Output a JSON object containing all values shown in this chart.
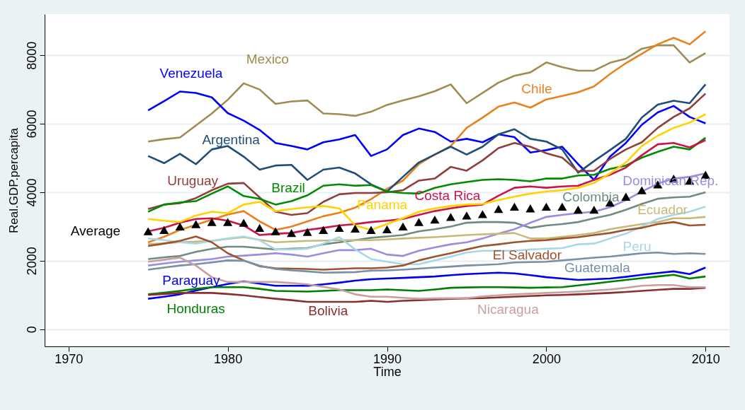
{
  "chart_data": {
    "type": "line",
    "xlabel": "Time",
    "ylabel": "Real.GDP.percapita",
    "x": [
      1975,
      1976,
      1977,
      1978,
      1979,
      1980,
      1981,
      1982,
      1983,
      1984,
      1985,
      1986,
      1987,
      1988,
      1989,
      1990,
      1991,
      1992,
      1993,
      1994,
      1995,
      1996,
      1997,
      1998,
      1999,
      2000,
      2001,
      2002,
      2003,
      2004,
      2005,
      2006,
      2007,
      2008,
      2009,
      2010
    ],
    "xlim": [
      1968.5,
      2011.5
    ],
    "xticks": [
      1970,
      1980,
      1990,
      2000,
      2010
    ],
    "ylim": [
      -500,
      9200
    ],
    "yticks": [
      0,
      2000,
      4000,
      6000,
      8000
    ],
    "grid": "y",
    "legend": false,
    "line_style": "solid",
    "marker": "none",
    "series": [
      {
        "name": "Mexico",
        "color": "#a08c50",
        "values": [
          5480,
          5550,
          5600,
          5950,
          6300,
          6700,
          7180,
          7000,
          6580,
          6650,
          6680,
          6300,
          6280,
          6230,
          6350,
          6550,
          6680,
          6800,
          6950,
          7150,
          6600,
          6900,
          7200,
          7400,
          7500,
          7790,
          7650,
          7550,
          7550,
          7780,
          7900,
          8190,
          8290,
          8290,
          7790,
          8060
        ]
      },
      {
        "name": "Venezuela",
        "color": "#0000ff",
        "values": [
          6390,
          6660,
          6940,
          6900,
          6770,
          6310,
          6090,
          5820,
          5440,
          5350,
          5250,
          5460,
          5540,
          5670,
          5060,
          5250,
          5670,
          5860,
          5760,
          5480,
          5560,
          5460,
          5690,
          5610,
          5160,
          5230,
          5330,
          4820,
          4360,
          5040,
          5440,
          5970,
          6330,
          6520,
          6200,
          6010
        ]
      },
      {
        "name": "Chile",
        "color": "#e8821e",
        "values": [
          2540,
          2700,
          2900,
          3050,
          3200,
          3350,
          3450,
          3150,
          2900,
          3000,
          3150,
          3300,
          3400,
          3550,
          3800,
          4100,
          4340,
          4820,
          5100,
          5350,
          5880,
          6180,
          6500,
          6620,
          6470,
          6710,
          6810,
          6920,
          7090,
          7450,
          7770,
          8040,
          8320,
          8510,
          8320,
          8700
        ]
      },
      {
        "name": "Argentina",
        "color": "#1f4e79",
        "values": [
          5060,
          4850,
          5120,
          4820,
          5250,
          5350,
          5040,
          4660,
          4780,
          4800,
          4360,
          4660,
          4720,
          4550,
          4230,
          4020,
          4450,
          4870,
          5100,
          5330,
          5100,
          5330,
          5690,
          5840,
          5560,
          5480,
          5250,
          4570,
          4910,
          5230,
          5560,
          6180,
          6560,
          6670,
          6600,
          7150
        ]
      },
      {
        "name": "Uruguay",
        "color": "#90403c",
        "values": [
          3510,
          3640,
          3680,
          3830,
          4060,
          4250,
          4270,
          3850,
          3430,
          3340,
          3390,
          3720,
          3940,
          3980,
          3980,
          4000,
          4060,
          4340,
          4400,
          4740,
          4630,
          4930,
          5290,
          5440,
          5330,
          5140,
          5010,
          4610,
          4630,
          4970,
          5250,
          5460,
          5880,
          6200,
          6450,
          6880
        ]
      },
      {
        "name": "Brazil",
        "color": "#008c00",
        "values": [
          3430,
          3640,
          3700,
          3740,
          3960,
          4170,
          3890,
          3810,
          3640,
          3740,
          3910,
          4190,
          4230,
          4190,
          4210,
          4020,
          3980,
          3960,
          4130,
          4230,
          4300,
          4360,
          4380,
          4360,
          4320,
          4400,
          4400,
          4490,
          4510,
          4680,
          4780,
          5010,
          5180,
          5330,
          5250,
          5590
        ]
      },
      {
        "name": "Costa Rica",
        "color": "#cc1448",
        "values": [
          2860,
          2960,
          3110,
          3220,
          3240,
          3170,
          3030,
          2750,
          2790,
          2810,
          2900,
          2960,
          3030,
          3070,
          3130,
          3170,
          3220,
          3340,
          3450,
          3530,
          3600,
          3640,
          3900,
          4130,
          4170,
          4130,
          4170,
          4190,
          4360,
          4510,
          4720,
          5080,
          5400,
          5440,
          5310,
          5520
        ]
      },
      {
        "name": "Panama",
        "color": "#ffd200",
        "values": [
          3220,
          3170,
          3130,
          3320,
          3430,
          3390,
          3640,
          3720,
          3450,
          3510,
          3560,
          3600,
          3530,
          3030,
          2900,
          3070,
          3240,
          3430,
          3530,
          3600,
          3640,
          3660,
          3770,
          3870,
          3960,
          4020,
          4060,
          4130,
          4270,
          4550,
          4870,
          5350,
          5650,
          5880,
          6030,
          6280
        ]
      },
      {
        "name": "Colombia",
        "color": "#6e8c80",
        "values": [
          2050,
          2100,
          2140,
          2260,
          2350,
          2410,
          2410,
          2370,
          2330,
          2350,
          2370,
          2480,
          2540,
          2600,
          2670,
          2710,
          2750,
          2860,
          2920,
          3000,
          3110,
          3130,
          3130,
          3110,
          2960,
          3030,
          3070,
          3130,
          3240,
          3340,
          3490,
          3660,
          3810,
          3850,
          3870,
          4000
        ]
      },
      {
        "name": "Dominican Rep.",
        "color": "#9b8ce0",
        "values": [
          1860,
          1920,
          1970,
          2010,
          2050,
          2120,
          2150,
          2180,
          2220,
          2180,
          2120,
          2220,
          2310,
          2310,
          2350,
          2180,
          2140,
          2290,
          2390,
          2480,
          2540,
          2650,
          2790,
          2920,
          3110,
          3280,
          3340,
          3390,
          3430,
          3560,
          3770,
          4020,
          4250,
          4400,
          4450,
          4550
        ]
      },
      {
        "name": "Ecuador",
        "color": "#c8b878",
        "values": [
          2480,
          2510,
          2540,
          2560,
          2580,
          2640,
          2690,
          2610,
          2540,
          2560,
          2580,
          2590,
          2600,
          2600,
          2600,
          2620,
          2650,
          2670,
          2690,
          2720,
          2750,
          2770,
          2790,
          2810,
          2650,
          2650,
          2700,
          2750,
          2810,
          2920,
          3000,
          3070,
          3130,
          3240,
          3240,
          3280
        ]
      },
      {
        "name": "Peru",
        "color": "#a8d8e8",
        "values": [
          2650,
          2600,
          2540,
          2500,
          2580,
          2650,
          2710,
          2600,
          2330,
          2330,
          2350,
          2500,
          2690,
          2330,
          2050,
          1970,
          1900,
          1900,
          2010,
          2120,
          2240,
          2290,
          2290,
          2290,
          2330,
          2350,
          2370,
          2480,
          2500,
          2650,
          2790,
          3000,
          3220,
          3340,
          3430,
          3580
        ]
      },
      {
        "name": "El Salvador",
        "color": "#a0522d",
        "values": [
          2430,
          2500,
          2580,
          2710,
          2540,
          2220,
          2010,
          1840,
          1780,
          1770,
          1760,
          1740,
          1760,
          1780,
          1780,
          1800,
          1860,
          2010,
          2120,
          2220,
          2330,
          2430,
          2480,
          2540,
          2580,
          2600,
          2650,
          2690,
          2750,
          2810,
          2900,
          2960,
          3070,
          3130,
          3030,
          3050
        ]
      },
      {
        "name": "Guatemala",
        "color": "#7890a8",
        "values": [
          1740,
          1800,
          1860,
          1900,
          1950,
          2010,
          2000,
          1860,
          1760,
          1720,
          1690,
          1650,
          1660,
          1670,
          1710,
          1720,
          1740,
          1770,
          1800,
          1830,
          1860,
          1880,
          1900,
          1950,
          1960,
          1970,
          2010,
          2050,
          2090,
          2120,
          2170,
          2220,
          2240,
          2200,
          2220,
          2200
        ]
      },
      {
        "name": "Paraguay",
        "color": "#0000f0",
        "values": [
          890,
          950,
          1020,
          1130,
          1230,
          1320,
          1400,
          1330,
          1270,
          1270,
          1270,
          1310,
          1360,
          1420,
          1460,
          1480,
          1500,
          1520,
          1540,
          1580,
          1610,
          1630,
          1650,
          1630,
          1580,
          1520,
          1480,
          1440,
          1460,
          1480,
          1530,
          1590,
          1640,
          1690,
          1610,
          1800
        ]
      },
      {
        "name": "Honduras",
        "color": "#008000",
        "values": [
          1020,
          1070,
          1120,
          1180,
          1230,
          1230,
          1230,
          1180,
          1120,
          1110,
          1100,
          1120,
          1140,
          1140,
          1140,
          1160,
          1140,
          1120,
          1160,
          1210,
          1220,
          1230,
          1230,
          1220,
          1210,
          1220,
          1230,
          1280,
          1330,
          1390,
          1440,
          1490,
          1540,
          1590,
          1480,
          1540
        ]
      },
      {
        "name": "Bolivia",
        "color": "#8b2e2e",
        "values": [
          1000,
          1030,
          1060,
          1060,
          1060,
          1030,
          990,
          940,
          890,
          850,
          800,
          800,
          800,
          800,
          830,
          800,
          830,
          850,
          870,
          890,
          900,
          910,
          930,
          950,
          970,
          990,
          1000,
          1020,
          1040,
          1060,
          1090,
          1120,
          1150,
          1180,
          1180,
          1210
        ]
      },
      {
        "name": "Nicaragua",
        "color": "#c8a0a0",
        "values": [
          1970,
          2030,
          2090,
          1860,
          1520,
          1380,
          1380,
          1380,
          1380,
          1350,
          1310,
          1240,
          1160,
          1020,
          950,
          950,
          920,
          890,
          900,
          910,
          910,
          960,
          990,
          1020,
          1040,
          1060,
          1080,
          1100,
          1130,
          1160,
          1210,
          1270,
          1290,
          1290,
          1230,
          1230
        ]
      },
      {
        "name": "Average",
        "type": "scatter",
        "marker": "triangle",
        "color": "#000000",
        "values": [
          2860,
          2900,
          3000,
          3070,
          3130,
          3130,
          3110,
          2960,
          2860,
          2810,
          2840,
          2900,
          2960,
          2940,
          2900,
          2920,
          3000,
          3130,
          3200,
          3280,
          3320,
          3360,
          3510,
          3580,
          3530,
          3580,
          3580,
          3490,
          3490,
          3700,
          3870,
          4060,
          4230,
          4400,
          4340,
          4510
        ]
      }
    ]
  }
}
